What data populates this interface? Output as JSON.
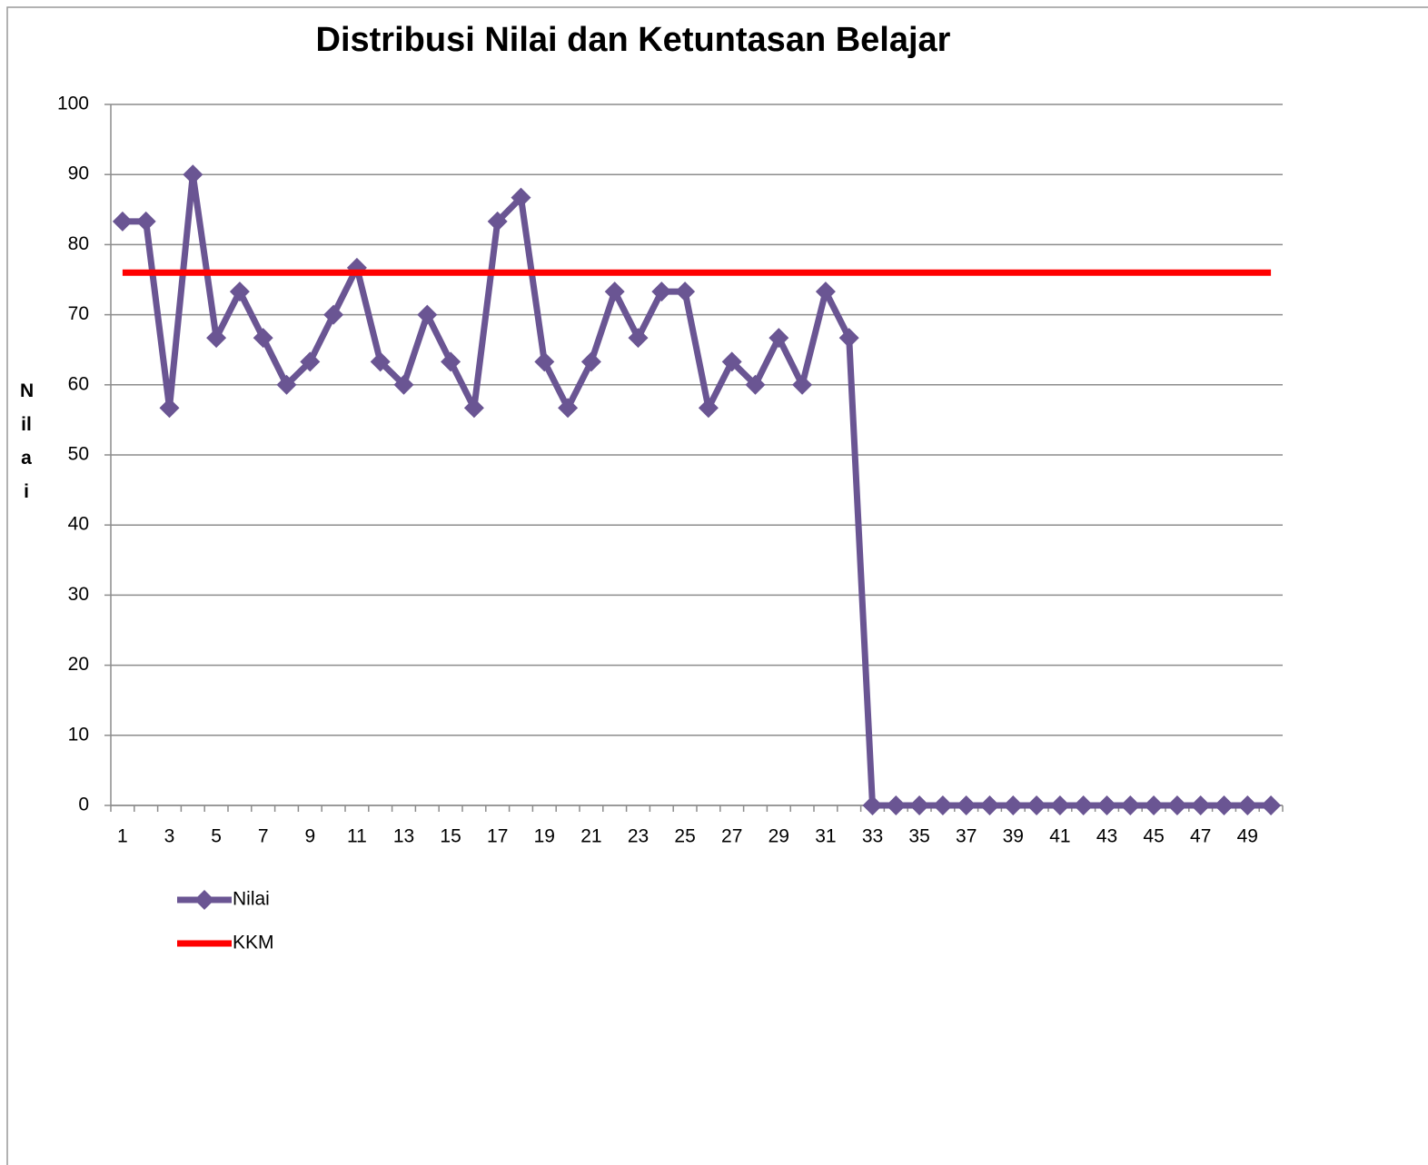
{
  "chart_data": {
    "type": "line",
    "title": "Distribusi Nilai dan Ketuntasan Belajar",
    "y_label": "Nilai",
    "categories": [
      1,
      null,
      3,
      null,
      5,
      null,
      7,
      null,
      9,
      null,
      11,
      null,
      13,
      null,
      15,
      null,
      17,
      null,
      19,
      null,
      21,
      null,
      23,
      null,
      25,
      null,
      27,
      null,
      29,
      null,
      31,
      null,
      33,
      null,
      35,
      null,
      37,
      null,
      39,
      null,
      41,
      null,
      43,
      null,
      45,
      null,
      47,
      null,
      49,
      null
    ],
    "series": [
      {
        "name": "Nilai",
        "color": "#6a5593",
        "marker": "diamond",
        "values": [
          83.3,
          83.3,
          56.7,
          90,
          66.7,
          73.3,
          66.7,
          60,
          63.3,
          70,
          76.7,
          63.3,
          60,
          70,
          63.3,
          56.7,
          83.3,
          86.7,
          63.3,
          56.7,
          63.3,
          73.3,
          66.7,
          73.3,
          73.3,
          56.7,
          63.3,
          60,
          66.7,
          60,
          73.3,
          66.7,
          0,
          0,
          0,
          0,
          0,
          0,
          0,
          0,
          0,
          0,
          0,
          0,
          0,
          0,
          0,
          0,
          0,
          0
        ]
      },
      {
        "name": "KKM",
        "color": "#ff0000",
        "marker": "none",
        "values": [
          76,
          76,
          76,
          76,
          76,
          76,
          76,
          76,
          76,
          76,
          76,
          76,
          76,
          76,
          76,
          76,
          76,
          76,
          76,
          76,
          76,
          76,
          76,
          76,
          76,
          76,
          76,
          76,
          76,
          76,
          76,
          76,
          76,
          76,
          76,
          76,
          76,
          76,
          76,
          76,
          76,
          76,
          76,
          76,
          76,
          76,
          76,
          76,
          76,
          76
        ]
      }
    ],
    "ylim": [
      0,
      100
    ],
    "yticks": [
      0,
      10,
      20,
      30,
      40,
      50,
      60,
      70,
      80,
      90,
      100
    ],
    "grid": true,
    "legend": "bottom-left"
  }
}
